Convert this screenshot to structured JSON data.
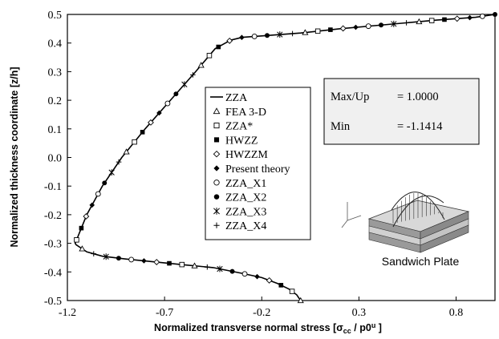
{
  "chart_data": {
    "type": "line",
    "title": "",
    "xlabel": "Normalized transverse normal stress  [σ_cc / p0ᵘ ]",
    "xlabel_main": "Normalized transverse normal stress  [σ",
    "xlabel_sub": "cc",
    "xlabel_mid": " / p0",
    "xlabel_sup": "u",
    "xlabel_end": " ]",
    "ylabel": "Normalized thickness coordinate [z/h]",
    "xlim": [
      -1.2,
      1.0
    ],
    "ylim": [
      -0.5,
      0.5
    ],
    "xticks": [
      "-1.2",
      "-0.7",
      "-0.2",
      "0.3",
      "0.8"
    ],
    "xtick_values": [
      -1.2,
      -0.7,
      -0.2,
      0.3,
      0.8
    ],
    "yticks": [
      "-0.5",
      "-0.4",
      "-0.3",
      "-0.2",
      "-0.1",
      "0.0",
      "0.1",
      "0.2",
      "0.3",
      "0.4",
      "0.5"
    ],
    "ytick_values": [
      -0.5,
      -0.4,
      -0.3,
      -0.2,
      -0.1,
      0.0,
      0.1,
      0.2,
      0.3,
      0.4,
      0.5
    ],
    "grid": false,
    "legend_placement": "center",
    "curve": {
      "x": [
        0.0,
        -0.02,
        -0.06,
        -0.12,
        -0.2,
        -0.3,
        -0.45,
        -0.6,
        -0.75,
        -0.9,
        -1.02,
        -1.1,
        -1.155,
        -1.16,
        -1.1,
        -1.02,
        -0.92,
        -0.8,
        -0.67,
        -0.54,
        -0.44,
        -0.36,
        -0.33,
        -0.3,
        -0.2,
        0.0,
        0.2,
        0.45,
        0.7,
        0.9,
        1.0
      ],
      "y": [
        -0.5,
        -0.48,
        -0.46,
        -0.44,
        -0.42,
        -0.405,
        -0.385,
        -0.375,
        -0.365,
        -0.355,
        -0.345,
        -0.33,
        -0.305,
        -0.3,
        -0.2,
        -0.1,
        0.0,
        0.1,
        0.2,
        0.3,
        0.38,
        0.41,
        0.415,
        0.42,
        0.425,
        0.435,
        0.45,
        0.465,
        0.48,
        0.49,
        0.5
      ]
    },
    "series": [
      {
        "name": "ZZA",
        "marker": "line"
      },
      {
        "name": "FEA 3-D",
        "marker": "triangle-open"
      },
      {
        "name": "ZZA*",
        "marker": "square-open"
      },
      {
        "name": "HWZZ",
        "marker": "square-filled"
      },
      {
        "name": "HWZZM",
        "marker": "diamond-open"
      },
      {
        "name": "Present theory",
        "marker": "diamond-filled"
      },
      {
        "name": "ZZA_X1",
        "marker": "circle-open"
      },
      {
        "name": "ZZA_X2",
        "marker": "circle-filled"
      },
      {
        "name": "ZZA_X3",
        "marker": "asterisk"
      },
      {
        "name": "ZZA_X4",
        "marker": "plus"
      }
    ],
    "info_box": {
      "rows": [
        {
          "label": "Max/Up",
          "value": "= 1.0000"
        },
        {
          "label": "Min",
          "value": "= -1.1414"
        }
      ]
    },
    "inset": {
      "caption": "Sandwich Plate",
      "icon": "sandwich-plate-icon"
    }
  }
}
